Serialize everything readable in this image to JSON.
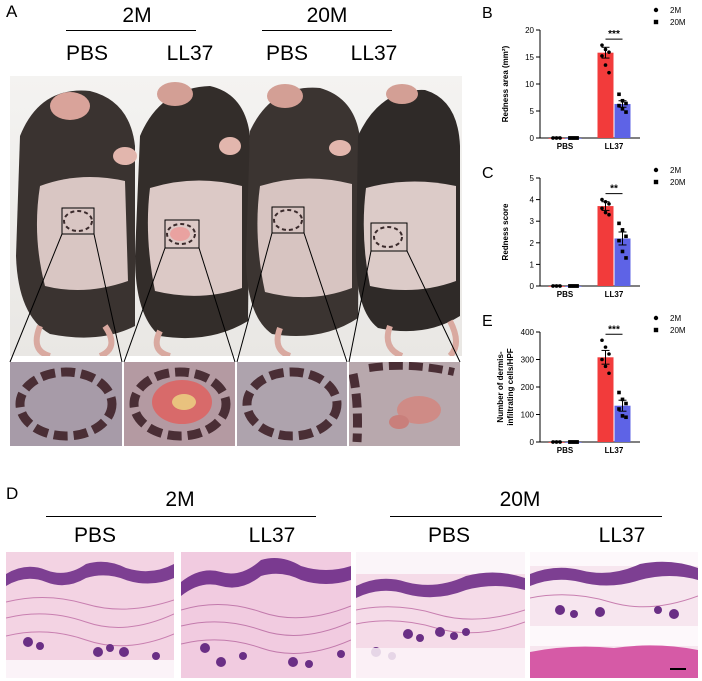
{
  "panel_a": {
    "letter": "A",
    "groups": [
      {
        "label": "2M",
        "conditions": [
          "PBS",
          "LL37"
        ]
      },
      {
        "label": "20M",
        "conditions": [
          "PBS",
          "LL37"
        ]
      }
    ]
  },
  "panel_d": {
    "letter": "D",
    "groups": [
      {
        "label": "2M",
        "conditions": [
          "PBS",
          "LL37"
        ]
      },
      {
        "label": "20M",
        "conditions": [
          "PBS",
          "LL37"
        ]
      }
    ]
  },
  "colors": {
    "group_2m": "#f23b3b",
    "group_20m": "#5e63e6",
    "he_pink": "#f0bcd6",
    "he_purple": "#7a3f8e"
  },
  "chart_data": [
    {
      "letter": "B",
      "type": "bar",
      "categories": [
        "PBS",
        "LL37"
      ],
      "series": [
        {
          "name": "2M",
          "values": [
            0,
            15.8
          ],
          "errors": [
            0,
            1.0
          ],
          "points": [
            [
              0,
              0,
              0,
              0,
              0,
              0
            ],
            [
              17.2,
              16.4,
              15.9,
              15.2,
              13.5,
              12.1
            ]
          ]
        },
        {
          "name": "20M",
          "values": [
            0,
            6.3
          ],
          "errors": [
            0,
            0.6
          ],
          "points": [
            [
              0,
              0,
              0,
              0,
              0,
              0
            ],
            [
              8.1,
              6.9,
              6.4,
              6.0,
              5.4,
              4.8
            ]
          ]
        }
      ],
      "ylabel": "Redness area (mm²)",
      "ylim": [
        0,
        20
      ],
      "yticks": [
        0,
        5,
        10,
        15,
        20
      ],
      "significance": "***",
      "legend": "top-right"
    },
    {
      "letter": "C",
      "type": "bar",
      "categories": [
        "PBS",
        "LL37"
      ],
      "series": [
        {
          "name": "2M",
          "values": [
            0,
            3.7
          ],
          "errors": [
            0,
            0.2
          ],
          "points": [
            [
              0,
              0,
              0,
              0,
              0,
              0
            ],
            [
              4.0,
              3.9,
              3.8,
              3.6,
              3.4,
              3.3
            ]
          ]
        },
        {
          "name": "20M",
          "values": [
            0,
            2.2
          ],
          "errors": [
            0,
            0.3
          ],
          "points": [
            [
              0,
              0,
              0,
              0,
              0,
              0
            ],
            [
              2.9,
              2.6,
              2.3,
              2.1,
              1.6,
              1.3
            ]
          ]
        }
      ],
      "ylabel": "Redness score",
      "ylim": [
        0,
        5
      ],
      "yticks": [
        0,
        1,
        2,
        3,
        4,
        5
      ],
      "significance": "**",
      "legend": "top-right"
    },
    {
      "letter": "E",
      "type": "bar",
      "categories": [
        "PBS",
        "LL37"
      ],
      "series": [
        {
          "name": "2M",
          "values": [
            0,
            308
          ],
          "errors": [
            0,
            25
          ],
          "points": [
            [
              0,
              0,
              0,
              0,
              0,
              0
            ],
            [
              370,
              345,
              320,
              300,
              275,
              250
            ]
          ]
        },
        {
          "name": "20M",
          "values": [
            0,
            132
          ],
          "errors": [
            0,
            20
          ],
          "points": [
            [
              0,
              0,
              0,
              0,
              0,
              0
            ],
            [
              180,
              155,
              140,
              120,
              95,
              90
            ]
          ]
        }
      ],
      "ylabel": "Number of dermis-infiltrating cells/HPF",
      "ylabel_lines": [
        "Number of dermis-",
        "infiltrating cells/HPF"
      ],
      "ylim": [
        0,
        400
      ],
      "yticks": [
        0,
        100,
        200,
        300,
        400
      ],
      "significance": "***",
      "legend": "top-right"
    }
  ]
}
